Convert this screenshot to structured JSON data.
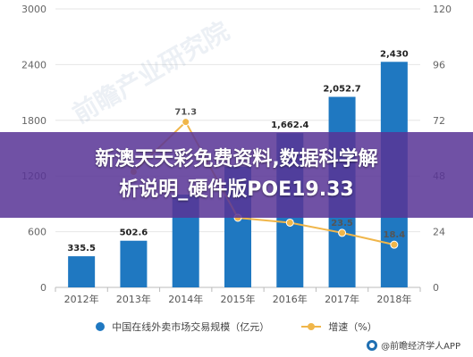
{
  "chart_data": {
    "type": "bar",
    "categories": [
      "2012年",
      "2013年",
      "2014年",
      "2015年",
      "2016年",
      "2017年",
      "2018年"
    ],
    "series": [
      {
        "name": "中国在线外卖市场交易规模（亿元）",
        "type": "bar",
        "axis": "left",
        "values": [
          335.5,
          502.6,
          1000,
          1300,
          1662.4,
          2052.7,
          2430
        ],
        "labels": [
          "335.5",
          "502.6",
          "",
          "",
          "1,662.4",
          "2,052.7",
          "2,430"
        ]
      },
      {
        "name": "增速（%）",
        "type": "line",
        "axis": "right",
        "values": [
          null,
          49.8,
          71.3,
          30,
          27.9,
          23.5,
          18.4
        ],
        "labels": [
          "",
          "",
          "71.3",
          "",
          "",
          "23.5",
          "18.4"
        ]
      }
    ],
    "y_left": {
      "ylim": [
        0,
        3000
      ],
      "ticks": [
        "0",
        "600",
        "1200",
        "1800",
        "2400",
        "3000"
      ]
    },
    "y_right": {
      "ylim": [
        0,
        120
      ],
      "ticks": [
        "0",
        "24",
        "48",
        "72",
        "96",
        "120"
      ]
    },
    "grid": true,
    "legend_position": "bottom"
  },
  "colors": {
    "bar": "#1f78c1",
    "line": "#f0b64a",
    "banner": "#583496"
  },
  "legend": {
    "bar_label": "中国在线外卖市场交易规模（亿元）",
    "line_label": "增速（%）"
  },
  "source": {
    "text": "@前瞻经济学人APP"
  },
  "banner": {
    "line1": "新澳天天彩免费资料,数据科学解",
    "line2": "析说明_硬件版POE19.33"
  },
  "watermark": {
    "text": "前瞻产业研究院"
  }
}
